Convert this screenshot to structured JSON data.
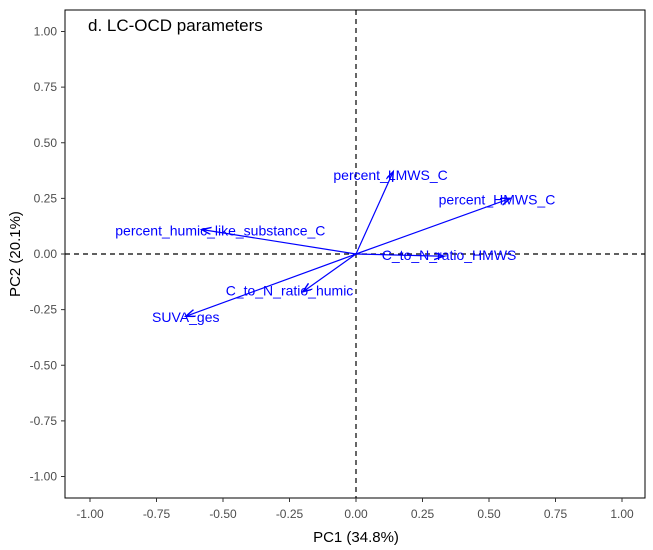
{
  "chart_data": {
    "type": "biplot",
    "title": "d. LC-OCD parameters",
    "xlabel": "PC1 (34.8%)",
    "ylabel": "PC2 (20.1%)",
    "xlim": [
      -1.1,
      1.1
    ],
    "ylim": [
      -1.1,
      1.1
    ],
    "x_ticks": [
      -1.0,
      -0.75,
      -0.5,
      -0.25,
      0.0,
      0.25,
      0.5,
      0.75,
      1.0
    ],
    "x_tick_labels": [
      "-1.00",
      "-0.75",
      "-0.50",
      "-0.25",
      "0.00",
      "0.25",
      "0.50",
      "0.75",
      "1.00"
    ],
    "y_ticks": [
      -1.0,
      -0.75,
      -0.5,
      -0.25,
      0.0,
      0.25,
      0.5,
      0.75,
      1.0
    ],
    "y_tick_labels": [
      "-1.00",
      "-0.75",
      "-0.50",
      "-0.25",
      "0.00",
      "0.25",
      "0.50",
      "0.75",
      "1.00"
    ],
    "grid": false,
    "reference_lines": [
      {
        "axis": "x",
        "value": 0,
        "style": "dashed"
      },
      {
        "axis": "y",
        "value": 0,
        "style": "dashed"
      }
    ],
    "vector_color": "#0000ff",
    "vectors": [
      {
        "name": "percent_LMWS_C",
        "x": 0.14,
        "y": 0.37,
        "label_x": 0.13,
        "label_y": 0.35
      },
      {
        "name": "percent_HMWS_C",
        "x": 0.58,
        "y": 0.25,
        "label_x": 0.53,
        "label_y": 0.24
      },
      {
        "name": "percent_humic_like_substance_C",
        "x": -0.58,
        "y": 0.11,
        "label_x": -0.51,
        "label_y": 0.1
      },
      {
        "name": "C_to_N_ratio_HMWS",
        "x": 0.33,
        "y": -0.01,
        "label_x": 0.35,
        "label_y": -0.01
      },
      {
        "name": "C_to_N_ratio_humic",
        "x": -0.2,
        "y": -0.17,
        "label_x": -0.25,
        "label_y": -0.17
      },
      {
        "name": "SUVA_ges",
        "x": -0.64,
        "y": -0.28,
        "label_x": -0.64,
        "label_y": -0.29
      }
    ]
  }
}
